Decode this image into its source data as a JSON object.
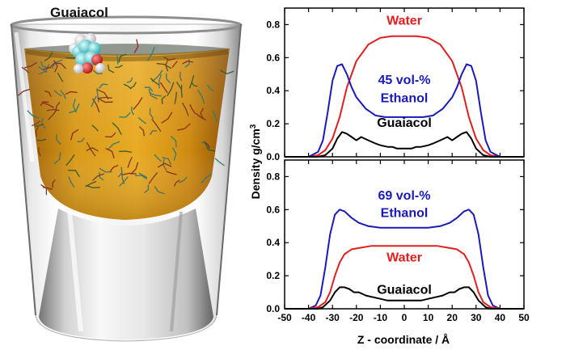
{
  "figure": {
    "molecule_label": "Guaiacol"
  },
  "colors": {
    "water": "#e02020",
    "ethanol": "#1a1ab8",
    "guaiacol": "#000000",
    "liquid": "#d4920e"
  },
  "chart_data": [
    {
      "type": "line",
      "panel": "top",
      "xlim": [
        -50,
        50
      ],
      "ylim": [
        0,
        0.9
      ],
      "yticks": [
        0,
        0.2,
        0.4,
        0.6,
        0.8
      ],
      "ytick_labels": [
        "0.0",
        "0.2",
        "0.4",
        "0.6",
        "0.8"
      ],
      "xticks": [
        -50,
        -40,
        -30,
        -20,
        -10,
        0,
        10,
        20,
        30,
        40,
        50
      ],
      "series": [
        {
          "name": "Water",
          "color": "water",
          "x": [
            -50,
            -40,
            -36,
            -33,
            -30,
            -27,
            -24,
            -20,
            -15,
            -10,
            -5,
            0,
            5,
            10,
            15,
            20,
            24,
            27,
            30,
            33,
            36,
            40,
            50
          ],
          "y": [
            0,
            0,
            0.01,
            0.04,
            0.11,
            0.24,
            0.42,
            0.58,
            0.68,
            0.72,
            0.73,
            0.73,
            0.73,
            0.72,
            0.68,
            0.58,
            0.42,
            0.24,
            0.11,
            0.04,
            0.01,
            0,
            0
          ]
        },
        {
          "name": "45 vol-%\nEthanol",
          "color": "ethanol",
          "x": [
            -50,
            -40,
            -36,
            -34,
            -32,
            -30,
            -28,
            -26,
            -24,
            -22,
            -20,
            -16,
            -12,
            -8,
            0,
            8,
            12,
            16,
            20,
            22,
            24,
            26,
            28,
            30,
            32,
            34,
            36,
            40,
            50
          ],
          "y": [
            0,
            0,
            0.03,
            0.1,
            0.27,
            0.46,
            0.55,
            0.56,
            0.5,
            0.42,
            0.36,
            0.29,
            0.25,
            0.24,
            0.24,
            0.24,
            0.25,
            0.29,
            0.36,
            0.42,
            0.5,
            0.56,
            0.55,
            0.46,
            0.27,
            0.1,
            0.03,
            0,
            0
          ]
        },
        {
          "name": "Guaiacol",
          "color": "guaiacol",
          "x": [
            -50,
            -36,
            -33,
            -30,
            -28,
            -26,
            -24,
            -22,
            -20,
            -18,
            -15,
            -12,
            -10,
            -7,
            -5,
            -3,
            0,
            3,
            5,
            7,
            10,
            12,
            15,
            18,
            20,
            22,
            24,
            26,
            28,
            30,
            33,
            36,
            50
          ],
          "y": [
            0,
            0,
            0.01,
            0.05,
            0.11,
            0.15,
            0.14,
            0.12,
            0.1,
            0.12,
            0.1,
            0.08,
            0.07,
            0.06,
            0.06,
            0.05,
            0.05,
            0.05,
            0.06,
            0.06,
            0.07,
            0.08,
            0.1,
            0.12,
            0.1,
            0.12,
            0.14,
            0.15,
            0.11,
            0.05,
            0.01,
            0,
            0
          ]
        }
      ],
      "annotations": [
        {
          "text": "Water",
          "x": 0,
          "y": 0.8,
          "color": "water"
        },
        {
          "text": "45 vol-%",
          "x": 0,
          "y": 0.44,
          "color": "ethanol"
        },
        {
          "text": "Ethanol",
          "x": 0,
          "y": 0.33,
          "color": "ethanol"
        },
        {
          "text": "Guaiacol",
          "x": 0,
          "y": 0.18,
          "color": "guaiacol"
        }
      ]
    },
    {
      "type": "line",
      "panel": "bottom",
      "xlim": [
        -50,
        50
      ],
      "ylim": [
        0,
        0.9
      ],
      "yticks": [
        0,
        0.2,
        0.4,
        0.6,
        0.8
      ],
      "ytick_labels": [
        "0.0",
        "0.2",
        "0.4",
        "0.6",
        "0.8"
      ],
      "xticks": [
        -50,
        -40,
        -30,
        -20,
        -10,
        0,
        10,
        20,
        30,
        40,
        50
      ],
      "xtick_labels": [
        "-50",
        "-40",
        "-30",
        "-20",
        "-10",
        "0",
        "10",
        "20",
        "30",
        "40",
        "50"
      ],
      "xlabel": "Z - coordinate / Å",
      "ylabel": "Density g/cm³",
      "series": [
        {
          "name": "69 vol-%\nEthanol",
          "color": "ethanol",
          "x": [
            -50,
            -40,
            -37,
            -35,
            -33,
            -31,
            -29,
            -27,
            -25,
            -22,
            -19,
            -15,
            -10,
            -5,
            0,
            5,
            10,
            15,
            19,
            22,
            25,
            27,
            29,
            31,
            33,
            35,
            37,
            40,
            50
          ],
          "y": [
            0,
            0,
            0.02,
            0.08,
            0.25,
            0.45,
            0.57,
            0.6,
            0.59,
            0.55,
            0.52,
            0.5,
            0.49,
            0.49,
            0.49,
            0.49,
            0.49,
            0.5,
            0.52,
            0.55,
            0.59,
            0.6,
            0.57,
            0.45,
            0.25,
            0.08,
            0.02,
            0,
            0
          ]
        },
        {
          "name": "Water",
          "color": "water",
          "x": [
            -50,
            -40,
            -36,
            -33,
            -31,
            -29,
            -27,
            -25,
            -22,
            -18,
            -14,
            -10,
            0,
            10,
            14,
            18,
            22,
            25,
            27,
            29,
            31,
            33,
            36,
            40,
            50
          ],
          "y": [
            0,
            0,
            0.01,
            0.04,
            0.1,
            0.2,
            0.28,
            0.33,
            0.36,
            0.37,
            0.38,
            0.38,
            0.38,
            0.38,
            0.38,
            0.37,
            0.36,
            0.33,
            0.28,
            0.2,
            0.1,
            0.04,
            0.01,
            0,
            0
          ]
        },
        {
          "name": "Guaiacol",
          "color": "guaiacol",
          "x": [
            -50,
            -36,
            -34,
            -31,
            -29,
            -27,
            -25,
            -23,
            -21,
            -19,
            -16,
            -13,
            -10,
            -7,
            -4,
            0,
            4,
            7,
            10,
            13,
            16,
            19,
            21,
            23,
            25,
            27,
            29,
            31,
            34,
            36,
            50
          ],
          "y": [
            0,
            0,
            0.01,
            0.05,
            0.1,
            0.13,
            0.13,
            0.12,
            0.1,
            0.1,
            0.08,
            0.07,
            0.06,
            0.05,
            0.05,
            0.05,
            0.05,
            0.05,
            0.06,
            0.07,
            0.08,
            0.1,
            0.1,
            0.12,
            0.13,
            0.13,
            0.1,
            0.05,
            0.01,
            0,
            0
          ]
        }
      ],
      "annotations": [
        {
          "text": "69 vol-%",
          "x": 0,
          "y": 0.66,
          "color": "ethanol"
        },
        {
          "text": "Ethanol",
          "x": 0,
          "y": 0.555,
          "color": "ethanol"
        },
        {
          "text": "Water",
          "x": 0,
          "y": 0.285,
          "color": "water"
        },
        {
          "text": "Guaiacol",
          "x": 0,
          "y": 0.09,
          "color": "guaiacol"
        }
      ]
    }
  ]
}
